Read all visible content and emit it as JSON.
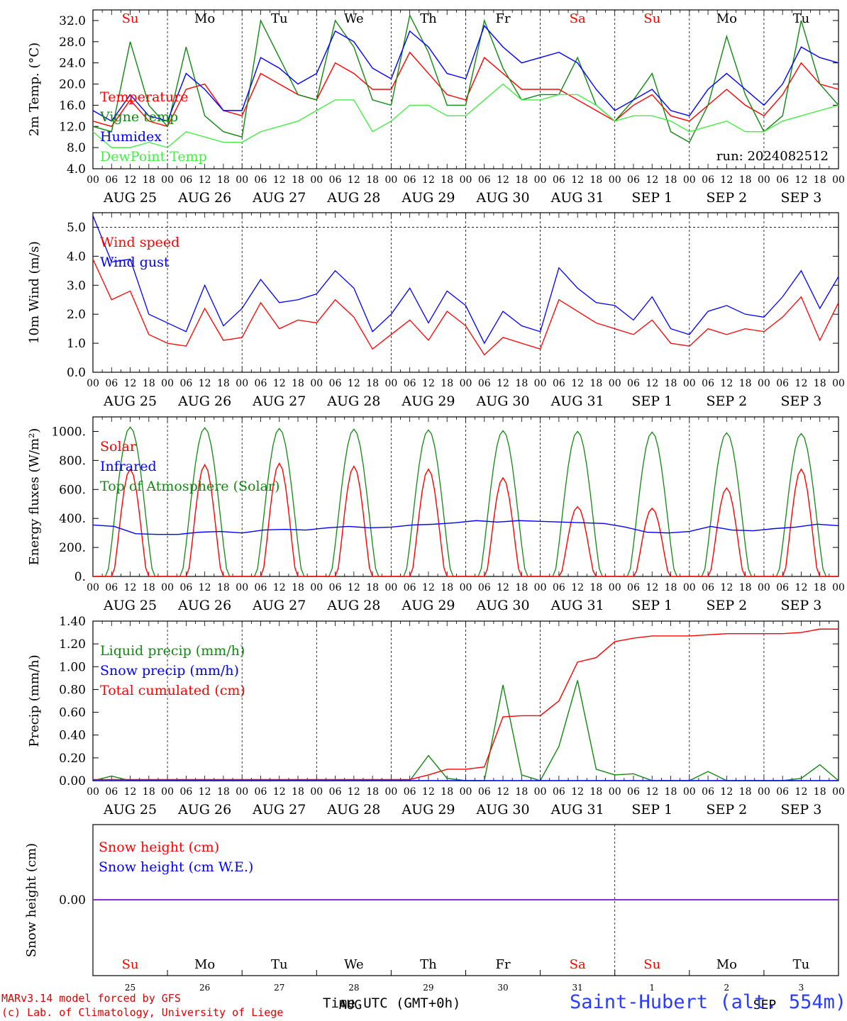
{
  "footer": {
    "credit_line1": "MARv3.14 model forced by GFS",
    "credit_line2": "(c) Lab. of Climatology, University of Liege",
    "time_label": "Time UTC (GMT+0h)",
    "station": "Saint-Hubert (alt. 554m)"
  },
  "colors": {
    "red": "#ff0000",
    "blue": "#0000ff",
    "green": "#118811",
    "lightgreen": "#44ee44",
    "purple": "#8a2be2"
  },
  "chart_data": [
    {
      "type": "line",
      "id": "temp",
      "ylabel": "2m Temp. (°C)",
      "ylim": [
        4,
        34
      ],
      "yticks": [
        "4.0",
        "8.0",
        "12.0",
        "16.0",
        "20.0",
        "24.0",
        "28.0",
        "32.0"
      ],
      "annotation": "run: 2024082512",
      "day_labels": [
        "Su",
        "Mo",
        "Tu",
        "We",
        "Th",
        "Fr",
        "Sa",
        "Su",
        "Mo",
        "Tu"
      ],
      "day_label_colors": [
        "red",
        "black",
        "black",
        "black",
        "black",
        "black",
        "red",
        "red",
        "black",
        "black"
      ],
      "hour_ticks": [
        "00",
        "06",
        "12",
        "18"
      ],
      "date_labels": [
        "AUG 25",
        "AUG 26",
        "AUG 27",
        "AUG 28",
        "AUG 29",
        "AUG 30",
        "AUG 31",
        "SEP  1",
        "SEP  2",
        "SEP  3"
      ],
      "x_hours": [
        0,
        6,
        12,
        18,
        24,
        30,
        36,
        42,
        48,
        54,
        60,
        66,
        72,
        78,
        84,
        90,
        96,
        102,
        108,
        114,
        120,
        126,
        132,
        138,
        144,
        150,
        156,
        162,
        168,
        174,
        180,
        186,
        192,
        198,
        204,
        210,
        216,
        222,
        228,
        234,
        240
      ],
      "series": [
        {
          "name": "Temperature",
          "color": "red",
          "values": [
            13,
            12,
            17,
            13,
            12,
            19,
            20,
            15,
            14,
            22,
            20,
            18,
            17,
            24,
            22,
            19,
            19,
            26,
            22,
            18,
            17,
            25,
            22,
            19,
            19,
            19,
            17,
            15,
            13,
            16,
            18,
            14,
            13,
            16,
            19,
            16,
            14,
            18,
            24,
            20,
            19
          ]
        },
        {
          "name": "Vigne temp",
          "color": "green",
          "values": [
            12,
            11,
            28,
            16,
            12,
            27,
            14,
            11,
            10,
            32,
            25,
            18,
            17,
            32,
            27,
            17,
            16,
            33,
            26,
            16,
            16,
            32,
            23,
            17,
            18,
            18,
            25,
            16,
            13,
            17,
            22,
            11,
            9,
            16,
            29,
            18,
            11,
            14,
            32,
            20,
            16
          ]
        },
        {
          "name": "Humidex",
          "color": "blue",
          "values": [
            15,
            13,
            18,
            14,
            13,
            22,
            19,
            15,
            15,
            25,
            23,
            20,
            22,
            30,
            28,
            23,
            21,
            30,
            27,
            22,
            21,
            31,
            27,
            24,
            25,
            26,
            24,
            19,
            15,
            17,
            19,
            15,
            14,
            19,
            22,
            19,
            16,
            20,
            27,
            25,
            24
          ]
        },
        {
          "name": "DewPoint Temp",
          "color": "lightgreen",
          "values": [
            11,
            8,
            8,
            9,
            8,
            11,
            10,
            9,
            9,
            11,
            12,
            13,
            15,
            17,
            17,
            11,
            13,
            16,
            16,
            14,
            14,
            17,
            20,
            17,
            17,
            18,
            18,
            16,
            13,
            14,
            14,
            13,
            11,
            12,
            13,
            11,
            11,
            13,
            14,
            15,
            16
          ]
        }
      ]
    },
    {
      "type": "line",
      "id": "wind",
      "ylabel": "10m Wind (m/s)",
      "ylim": [
        0,
        5.5
      ],
      "yticks": [
        "0.0",
        "1.0",
        "2.0",
        "3.0",
        "4.0",
        "5.0"
      ],
      "hour_ticks": [
        "00",
        "06",
        "12",
        "18"
      ],
      "date_labels": [
        "AUG 25",
        "AUG 26",
        "AUG 27",
        "AUG 28",
        "AUG 29",
        "AUG 30",
        "AUG 31",
        "SEP  1",
        "SEP  2",
        "SEP  3"
      ],
      "x_hours": [
        0,
        6,
        12,
        18,
        24,
        30,
        36,
        42,
        48,
        54,
        60,
        66,
        72,
        78,
        84,
        90,
        96,
        102,
        108,
        114,
        120,
        126,
        132,
        138,
        144,
        150,
        156,
        162,
        168,
        174,
        180,
        186,
        192,
        198,
        204,
        210,
        216,
        222,
        228,
        234,
        240
      ],
      "series": [
        {
          "name": "Wind speed",
          "color": "red",
          "values": [
            3.9,
            2.5,
            2.8,
            1.3,
            1.0,
            0.9,
            2.2,
            1.1,
            1.2,
            2.4,
            1.5,
            1.8,
            1.7,
            2.5,
            1.9,
            0.8,
            1.3,
            1.8,
            1.1,
            2.1,
            1.6,
            0.6,
            1.2,
            1.0,
            0.8,
            2.5,
            2.1,
            1.7,
            1.5,
            1.3,
            1.8,
            1.0,
            0.9,
            1.5,
            1.3,
            1.5,
            1.4,
            1.9,
            2.6,
            1.1,
            2.4
          ]
        },
        {
          "name": "Wind gust",
          "color": "blue",
          "values": [
            5.4,
            3.8,
            3.9,
            2.0,
            1.7,
            1.4,
            3.0,
            1.6,
            2.2,
            3.2,
            2.4,
            2.5,
            2.7,
            3.5,
            2.9,
            1.4,
            2.0,
            2.9,
            1.7,
            2.8,
            2.3,
            1.0,
            2.1,
            1.6,
            1.4,
            3.6,
            2.9,
            2.4,
            2.3,
            1.8,
            2.6,
            1.5,
            1.3,
            2.1,
            2.3,
            2.0,
            1.9,
            2.6,
            3.5,
            2.2,
            3.3
          ]
        }
      ]
    },
    {
      "type": "line",
      "id": "energy",
      "ylabel": "Energy fluxes (W/m²)",
      "ylim": [
        0,
        1100
      ],
      "yticks": [
        "0.",
        "200.",
        "400.",
        "600.",
        "800.",
        "1000."
      ],
      "hour_ticks": [
        "00",
        "06",
        "12",
        "18"
      ],
      "date_labels": [
        "AUG 25",
        "AUG 26",
        "AUG 27",
        "AUG 28",
        "AUG 29",
        "AUG 30",
        "AUG 31",
        "SEP  1",
        "SEP  2",
        "SEP  3"
      ],
      "series": [
        {
          "name": "Solar",
          "color": "red",
          "daily_peaks": [
            740,
            770,
            780,
            760,
            740,
            680,
            480,
            470,
            610,
            740
          ]
        },
        {
          "name": "Infrared",
          "color": "blue",
          "values": [
            355,
            345,
            295,
            290,
            290,
            305,
            310,
            300,
            320,
            325,
            320,
            335,
            345,
            335,
            340,
            355,
            360,
            370,
            385,
            375,
            385,
            380,
            375,
            370,
            365,
            340,
            305,
            300,
            310,
            345,
            320,
            315,
            330,
            340,
            360,
            350
          ]
        },
        {
          "name": "Top of Atmosphere (Solar)",
          "color": "green",
          "daily_peaks": [
            1030,
            1025,
            1020,
            1015,
            1010,
            1005,
            1000,
            995,
            990,
            985
          ]
        }
      ]
    },
    {
      "type": "line",
      "id": "precip",
      "ylabel": "Precip (mm/h)",
      "ylim": [
        0,
        1.4
      ],
      "yticks": [
        "0.00",
        "0.20",
        "0.40",
        "0.60",
        "0.80",
        "1.00",
        "1.20",
        "1.40"
      ],
      "hour_ticks": [
        "00",
        "06",
        "12",
        "18"
      ],
      "date_labels": [
        "AUG 25",
        "AUG 26",
        "AUG 27",
        "AUG 28",
        "AUG 29",
        "AUG 30",
        "AUG 31",
        "SEP  1",
        "SEP  2",
        "SEP  3"
      ],
      "x_hours": [
        0,
        6,
        12,
        18,
        24,
        30,
        36,
        42,
        48,
        54,
        60,
        66,
        72,
        78,
        84,
        90,
        96,
        102,
        108,
        114,
        120,
        126,
        132,
        138,
        144,
        150,
        156,
        162,
        168,
        174,
        180,
        186,
        192,
        198,
        204,
        210,
        216,
        222,
        228,
        234,
        240
      ],
      "series": [
        {
          "name": "Liquid precip (mm/h)",
          "color": "green",
          "values": [
            0,
            0.04,
            0,
            0,
            0,
            0,
            0,
            0,
            0,
            0,
            0,
            0,
            0,
            0,
            0,
            0,
            0,
            0,
            0.22,
            0.02,
            0,
            0,
            0.84,
            0.05,
            0,
            0.3,
            0.88,
            0.1,
            0.05,
            0.06,
            0,
            0,
            0,
            0.08,
            0,
            0,
            0,
            0,
            0.02,
            0.14,
            0
          ]
        },
        {
          "name": "Snow precip (mm/h)",
          "color": "blue",
          "values": [
            0,
            0,
            0,
            0,
            0,
            0,
            0,
            0,
            0,
            0,
            0,
            0,
            0,
            0,
            0,
            0,
            0,
            0,
            0,
            0,
            0,
            0,
            0,
            0,
            0,
            0,
            0,
            0,
            0,
            0,
            0,
            0,
            0,
            0,
            0,
            0,
            0,
            0,
            0,
            0,
            0
          ]
        },
        {
          "name": "Total cumulated (cm)",
          "color": "red",
          "values": [
            0.01,
            0.01,
            0.01,
            0.01,
            0.01,
            0.01,
            0.01,
            0.01,
            0.01,
            0.01,
            0.01,
            0.01,
            0.01,
            0.01,
            0.01,
            0.01,
            0.01,
            0.01,
            0.05,
            0.1,
            0.1,
            0.12,
            0.56,
            0.57,
            0.57,
            0.7,
            1.04,
            1.08,
            1.22,
            1.25,
            1.27,
            1.27,
            1.27,
            1.28,
            1.29,
            1.29,
            1.29,
            1.29,
            1.3,
            1.33,
            1.33
          ]
        }
      ]
    },
    {
      "type": "line",
      "id": "snow",
      "ylabel": "Snow height (cm)",
      "yticks": [
        "0.00"
      ],
      "series": [
        {
          "name": "Snow height (cm)",
          "color": "red",
          "values": [
            0,
            0
          ]
        },
        {
          "name": "Snow height (cm W.E.)",
          "color": "blue",
          "values": [
            0,
            0
          ]
        }
      ],
      "day_labels": [
        "Su",
        "Mo",
        "Tu",
        "We",
        "Th",
        "Fr",
        "Sa",
        "Su",
        "Mo",
        "Tu"
      ],
      "day_label_colors": [
        "red",
        "black",
        "black",
        "black",
        "black",
        "black",
        "red",
        "red",
        "black",
        "black"
      ],
      "day_numbers": [
        "25",
        "26",
        "27",
        "28",
        "29",
        "30",
        "31",
        "1",
        "2",
        "3"
      ],
      "overlap_label": "AUG",
      "overlap_label2": "SEP"
    }
  ]
}
